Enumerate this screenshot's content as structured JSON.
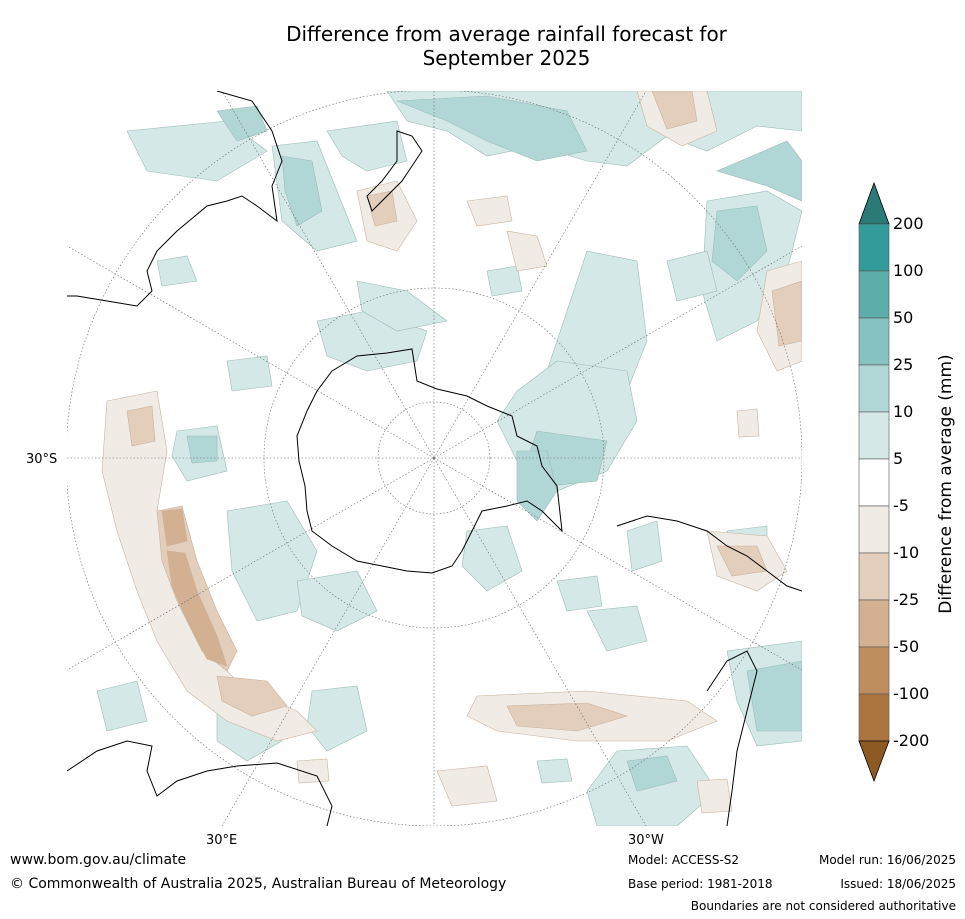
{
  "title_line1": "Difference from average rainfall forecast for",
  "title_line2": "September 2025",
  "map": {
    "projection": "south-polar-stereographic",
    "labels": {
      "lat_left": "30°S",
      "lon_30e": "30°E",
      "lon_30w": "30°W"
    }
  },
  "colorbar": {
    "label": "Difference from average (mm)",
    "ticks": [
      "200",
      "100",
      "50",
      "25",
      "10",
      "5",
      "-5",
      "-10",
      "-25",
      "-50",
      "-100",
      "-200"
    ],
    "colors": {
      "over": "#2a7a78",
      "b100_200": "#339c9a",
      "b50_100": "#5dadab",
      "b25_50": "#86c2c0",
      "b10_25": "#b0d7d6",
      "b5_10": "#d4e9e7",
      "neutral": "#ffffff",
      "n5_10": "#f1ebe5",
      "n10_25": "#e3cdbb",
      "n25_50": "#d2b091",
      "n50_100": "#be8d60",
      "n100_200": "#ab733f",
      "under": "#8e5a24"
    }
  },
  "footer": {
    "website": "www.bom.gov.au/climate",
    "copyright": "© Commonwealth of Australia 2025, Australian Bureau of Meteorology",
    "model": "Model: ACCESS-S2",
    "base_period": "Base period: 1981-2018",
    "model_run": "Model run: 16/06/2025",
    "issued": "Issued: 18/06/2025",
    "disclaimer": "Boundaries are not considered authoritative"
  }
}
